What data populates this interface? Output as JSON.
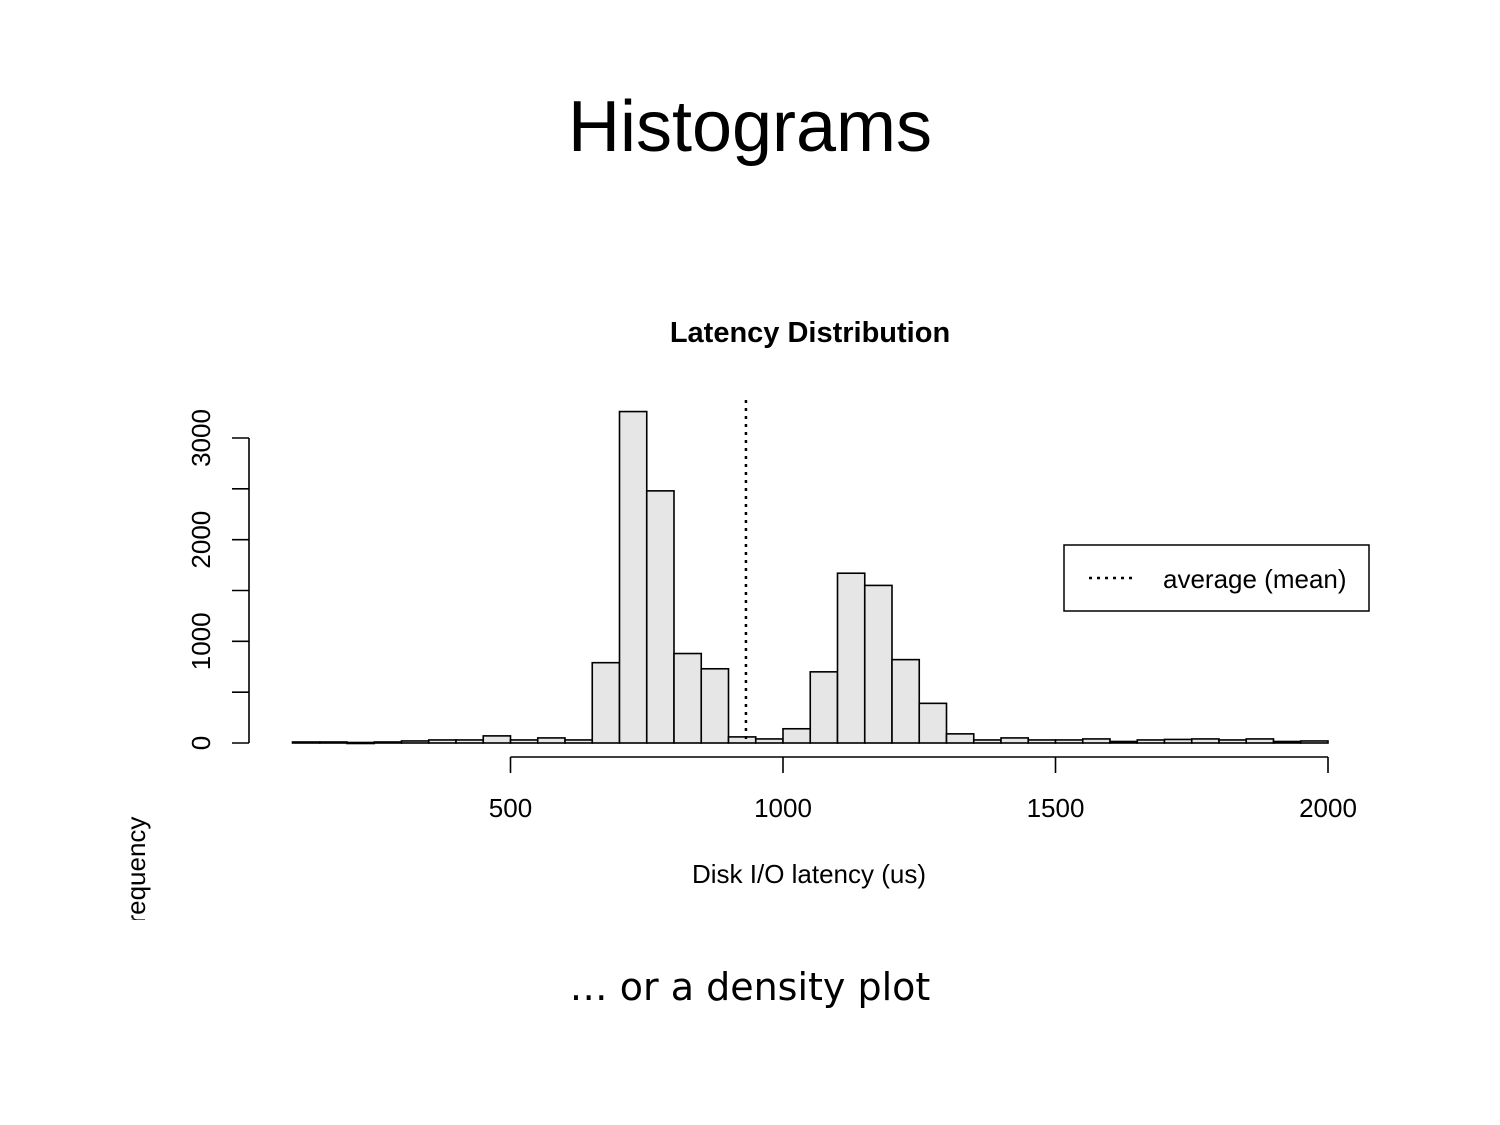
{
  "slide": {
    "title": "Histograms",
    "caption": "… or a density plot"
  },
  "chart_data": {
    "type": "bar",
    "title": "Latency Distribution",
    "xlabel": "Disk I/O latency (us)",
    "ylabel": "Frequency",
    "xlim": [
      25,
      2000
    ],
    "ylim": [
      0,
      3300
    ],
    "x_ticks": [
      500,
      1000,
      1500,
      2000
    ],
    "x_tick_labels": [
      "500",
      "1000",
      "1500",
      "2000"
    ],
    "y_ticks": [
      0,
      500,
      1000,
      1500,
      2000,
      2500,
      3000
    ],
    "y_tick_labels": [
      "0",
      "1000",
      "2000",
      "3000"
    ],
    "bin_width": 50,
    "bins": [
      {
        "start": 100,
        "end": 150,
        "count": 10
      },
      {
        "start": 150,
        "end": 200,
        "count": 10
      },
      {
        "start": 200,
        "end": 250,
        "count": 5
      },
      {
        "start": 250,
        "end": 300,
        "count": 10
      },
      {
        "start": 300,
        "end": 350,
        "count": 20
      },
      {
        "start": 350,
        "end": 400,
        "count": 30
      },
      {
        "start": 400,
        "end": 450,
        "count": 30
      },
      {
        "start": 450,
        "end": 500,
        "count": 70
      },
      {
        "start": 500,
        "end": 550,
        "count": 30
      },
      {
        "start": 550,
        "end": 600,
        "count": 50
      },
      {
        "start": 600,
        "end": 650,
        "count": 30
      },
      {
        "start": 650,
        "end": 700,
        "count": 790
      },
      {
        "start": 700,
        "end": 750,
        "count": 3260
      },
      {
        "start": 750,
        "end": 800,
        "count": 2480
      },
      {
        "start": 800,
        "end": 850,
        "count": 880
      },
      {
        "start": 850,
        "end": 900,
        "count": 730
      },
      {
        "start": 900,
        "end": 950,
        "count": 60
      },
      {
        "start": 950,
        "end": 1000,
        "count": 40
      },
      {
        "start": 1000,
        "end": 1050,
        "count": 140
      },
      {
        "start": 1050,
        "end": 1100,
        "count": 700
      },
      {
        "start": 1100,
        "end": 1150,
        "count": 1670
      },
      {
        "start": 1150,
        "end": 1200,
        "count": 1550
      },
      {
        "start": 1200,
        "end": 1250,
        "count": 820
      },
      {
        "start": 1250,
        "end": 1300,
        "count": 390
      },
      {
        "start": 1300,
        "end": 1350,
        "count": 90
      },
      {
        "start": 1350,
        "end": 1400,
        "count": 30
      },
      {
        "start": 1400,
        "end": 1450,
        "count": 50
      },
      {
        "start": 1450,
        "end": 1500,
        "count": 30
      },
      {
        "start": 1500,
        "end": 1550,
        "count": 30
      },
      {
        "start": 1550,
        "end": 1600,
        "count": 40
      },
      {
        "start": 1600,
        "end": 1650,
        "count": 15
      },
      {
        "start": 1650,
        "end": 1700,
        "count": 30
      },
      {
        "start": 1700,
        "end": 1750,
        "count": 35
      },
      {
        "start": 1750,
        "end": 1800,
        "count": 40
      },
      {
        "start": 1800,
        "end": 1850,
        "count": 30
      },
      {
        "start": 1850,
        "end": 1900,
        "count": 40
      },
      {
        "start": 1900,
        "end": 1950,
        "count": 15
      },
      {
        "start": 1950,
        "end": 2000,
        "count": 20
      }
    ],
    "mean_line": {
      "x": 932,
      "style": "dotted",
      "label": "average (mean)"
    },
    "legend": {
      "placement": "right",
      "entries": [
        "average (mean)"
      ]
    },
    "colors": {
      "bar_fill": "#e6e6e6",
      "bar_stroke": "#000000"
    },
    "grid": false
  }
}
